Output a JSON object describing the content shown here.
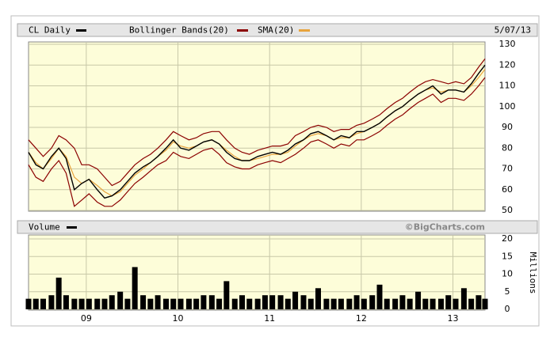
{
  "chart_data": [
    {
      "type": "line",
      "date": "5/07/13",
      "x": [
        2008.37,
        2008.45,
        2008.53,
        2008.62,
        2008.7,
        2008.78,
        2008.87,
        2008.95,
        2009.03,
        2009.12,
        2009.2,
        2009.28,
        2009.37,
        2009.45,
        2009.53,
        2009.62,
        2009.7,
        2009.78,
        2009.87,
        2009.95,
        2010.03,
        2010.12,
        2010.2,
        2010.28,
        2010.37,
        2010.45,
        2010.53,
        2010.62,
        2010.7,
        2010.78,
        2010.87,
        2010.95,
        2011.03,
        2011.12,
        2011.2,
        2011.28,
        2011.37,
        2011.45,
        2011.53,
        2011.62,
        2011.7,
        2011.78,
        2011.87,
        2011.95,
        2012.03,
        2012.12,
        2012.2,
        2012.28,
        2012.37,
        2012.45,
        2012.53,
        2012.62,
        2012.7,
        2012.78,
        2012.87,
        2012.95,
        2013.03,
        2013.12,
        2013.2,
        2013.28,
        2013.35
      ],
      "xlim": [
        2008.37,
        2013.35
      ],
      "xticks": [
        {
          "value": 2009,
          "label": "09"
        },
        {
          "value": 2010,
          "label": "10"
        },
        {
          "value": 2011,
          "label": "11"
        },
        {
          "value": 2012,
          "label": "12"
        },
        {
          "value": 2013,
          "label": "13"
        }
      ],
      "ylim": [
        50,
        130
      ],
      "yticks": [
        50,
        60,
        70,
        80,
        90,
        100,
        110,
        120,
        130
      ],
      "grid": true,
      "series": [
        {
          "name": "CL Daily",
          "color": "#000000",
          "values": [
            78,
            72,
            70,
            76,
            80,
            75,
            60,
            63,
            65,
            60,
            56,
            57,
            60,
            64,
            68,
            71,
            73,
            76,
            80,
            84,
            80,
            79,
            81,
            83,
            84,
            82,
            78,
            75,
            74,
            74,
            76,
            77,
            78,
            77,
            79,
            82,
            84,
            87,
            88,
            86,
            84,
            86,
            85,
            88,
            88,
            90,
            92,
            95,
            98,
            100,
            103,
            106,
            108,
            110,
            106,
            108,
            108,
            107,
            111,
            116,
            120
          ]
        },
        {
          "name": "Bollinger Bands(20)",
          "color": "#8b0000",
          "upper": [
            84,
            80,
            76,
            80,
            86,
            84,
            80,
            72,
            72,
            70,
            66,
            62,
            64,
            68,
            72,
            75,
            77,
            80,
            84,
            88,
            86,
            84,
            85,
            87,
            88,
            88,
            84,
            80,
            78,
            77,
            79,
            80,
            81,
            81,
            82,
            86,
            88,
            90,
            91,
            90,
            88,
            89,
            89,
            91,
            92,
            94,
            96,
            99,
            102,
            104,
            107,
            110,
            112,
            113,
            112,
            111,
            112,
            111,
            114,
            119,
            123
          ],
          "lower": [
            72,
            66,
            64,
            70,
            74,
            68,
            52,
            55,
            58,
            54,
            52,
            52,
            55,
            59,
            63,
            66,
            69,
            72,
            74,
            78,
            76,
            75,
            77,
            79,
            80,
            77,
            73,
            71,
            70,
            70,
            72,
            73,
            74,
            73,
            75,
            77,
            80,
            83,
            84,
            82,
            80,
            82,
            81,
            84,
            84,
            86,
            88,
            91,
            94,
            96,
            99,
            102,
            104,
            106,
            102,
            104,
            104,
            103,
            106,
            110,
            114
          ]
        },
        {
          "name": "SMA(20)",
          "color": "#e8a33c",
          "values": [
            78,
            73,
            70,
            75,
            80,
            76,
            66,
            63,
            65,
            62,
            59,
            57,
            59,
            63,
            67,
            70,
            73,
            76,
            79,
            83,
            81,
            80,
            81,
            83,
            84,
            82,
            79,
            76,
            74,
            74,
            75,
            76,
            77,
            77,
            78,
            81,
            84,
            86,
            87,
            86,
            84,
            85,
            85,
            87,
            88,
            90,
            92,
            95,
            98,
            100,
            103,
            106,
            108,
            109,
            107,
            108,
            108,
            107,
            110,
            114,
            118
          ]
        }
      ]
    },
    {
      "type": "bar",
      "title": "Volume",
      "credit": "©BigCharts.com",
      "y_label": "Millions",
      "color": "#000000",
      "ylim": [
        0,
        20
      ],
      "yticks": [
        0,
        5,
        10,
        15,
        20
      ],
      "grid": true,
      "values": [
        3,
        3,
        3,
        4,
        9,
        4,
        3,
        3,
        3,
        3,
        3,
        4,
        5,
        3,
        12,
        4,
        3,
        4,
        3,
        3,
        3,
        3,
        3,
        4,
        4,
        3,
        8,
        3,
        4,
        3,
        3,
        4,
        4,
        4,
        3,
        5,
        4,
        3,
        6,
        3,
        3,
        3,
        3,
        4,
        3,
        4,
        7,
        3,
        3,
        4,
        3,
        5,
        3,
        3,
        3,
        4,
        3,
        6,
        3,
        4,
        3
      ]
    }
  ]
}
